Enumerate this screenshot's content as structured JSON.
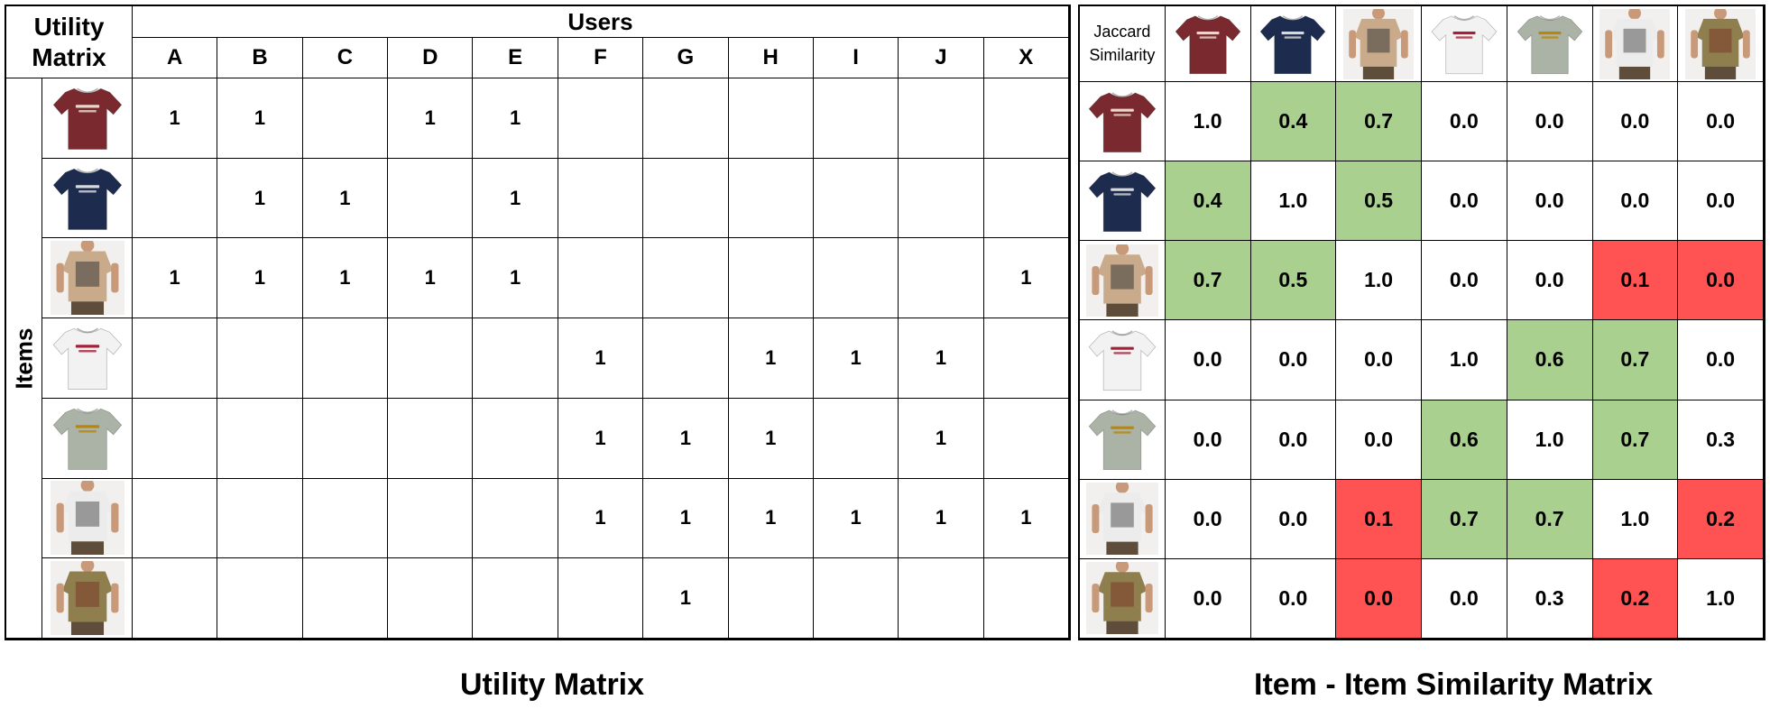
{
  "utility": {
    "corner_title": "Utility Matrix",
    "users_label": "Users",
    "items_label": "Items",
    "users": [
      "A",
      "B",
      "C",
      "D",
      "E",
      "F",
      "G",
      "H",
      "I",
      "J",
      "X"
    ],
    "rows": [
      [
        "1",
        "1",
        "",
        "1",
        "1",
        "",
        "",
        "",
        "",
        "",
        ""
      ],
      [
        "",
        "1",
        "1",
        "",
        "1",
        "",
        "",
        "",
        "",
        "",
        ""
      ],
      [
        "1",
        "1",
        "1",
        "1",
        "1",
        "",
        "",
        "",
        "",
        "",
        "1"
      ],
      [
        "",
        "",
        "",
        "",
        "",
        "1",
        "",
        "1",
        "1",
        "1",
        ""
      ],
      [
        "",
        "",
        "",
        "",
        "",
        "1",
        "1",
        "1",
        "",
        "1",
        ""
      ],
      [
        "",
        "",
        "",
        "",
        "",
        "1",
        "1",
        "1",
        "1",
        "1",
        "1"
      ],
      [
        "",
        "",
        "",
        "",
        "",
        "",
        "1",
        "",
        "",
        "",
        ""
      ]
    ]
  },
  "similarity": {
    "corner_title": "Jaccard Similarity",
    "rows": [
      [
        "1.0",
        "0.4",
        "0.7",
        "0.0",
        "0.0",
        "0.0",
        "0.0"
      ],
      [
        "0.4",
        "1.0",
        "0.5",
        "0.0",
        "0.0",
        "0.0",
        "0.0"
      ],
      [
        "0.7",
        "0.5",
        "1.0",
        "0.0",
        "0.0",
        "0.1",
        "0.0"
      ],
      [
        "0.0",
        "0.0",
        "0.0",
        "1.0",
        "0.6",
        "0.7",
        "0.0"
      ],
      [
        "0.0",
        "0.0",
        "0.0",
        "0.6",
        "1.0",
        "0.7",
        "0.3"
      ],
      [
        "0.0",
        "0.0",
        "0.1",
        "0.7",
        "0.7",
        "1.0",
        "0.2"
      ],
      [
        "0.0",
        "0.0",
        "0.0",
        "0.0",
        "0.3",
        "0.2",
        "1.0"
      ]
    ],
    "highlight": [
      [
        "",
        "green",
        "green",
        "",
        "",
        "",
        ""
      ],
      [
        "green",
        "",
        "green",
        "",
        "",
        "",
        ""
      ],
      [
        "green",
        "green",
        "",
        "",
        "",
        "red",
        "red"
      ],
      [
        "",
        "",
        "",
        "",
        "green",
        "green",
        ""
      ],
      [
        "",
        "",
        "",
        "green",
        "",
        "green",
        ""
      ],
      [
        "",
        "",
        "red",
        "green",
        "green",
        "",
        "red"
      ],
      [
        "",
        "",
        "red",
        "",
        "",
        "red",
        ""
      ]
    ],
    "highlight_colors": {
      "green": "#a9d08e",
      "red": "#ff5252"
    }
  },
  "items": [
    {
      "name": "maroon-tshirt",
      "color": "#7a2a2e",
      "print": "MOUNTAIN THYME",
      "print_color": "#e8d8cc",
      "type": "shirt"
    },
    {
      "name": "navy-tshirt",
      "color": "#1d2b4f",
      "print": "CALIFORNIA",
      "print_color": "#d9d9d9",
      "type": "shirt"
    },
    {
      "name": "beige-graphic-tshirt",
      "color": "#c9ab8b",
      "print": "",
      "print_color": "#3a3a3a",
      "type": "model"
    },
    {
      "name": "white-tshirt",
      "color": "#f2f2f2",
      "print": "FASHION",
      "print_color": "#a0233a",
      "type": "shirt"
    },
    {
      "name": "grey-tshirt",
      "color": "#aab3a5",
      "print": "AVIATOR",
      "print_color": "#b8860b",
      "type": "shirt"
    },
    {
      "name": "white-graphic-tshirt",
      "color": "#ececec",
      "print": "",
      "print_color": "#555555",
      "type": "model"
    },
    {
      "name": "olive-graphic-tshirt",
      "color": "#8f7e4e",
      "print": "",
      "print_color": "#7a3b2a",
      "type": "model"
    }
  ],
  "captions": {
    "left": "Utility Matrix",
    "right": "Item - Item Similarity Matrix"
  }
}
